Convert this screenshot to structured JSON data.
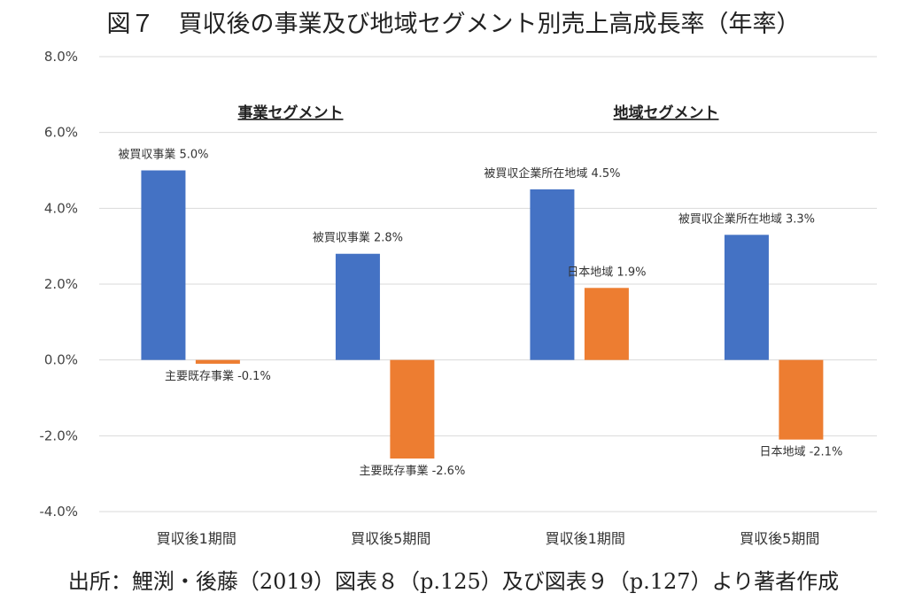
{
  "title": "図７　買収後の事業及び地域セグメント別売上高成長率（年率）",
  "source": "出所：鯉渕・後藤（2019）図表８（p.125）及び図表９（p.127）より著者作成",
  "segment_headers": [
    "事業セグメント",
    "地域セグメント"
  ],
  "colors": {
    "blue": "#4472C4",
    "orange": "#ED7D31"
  },
  "chart_data": {
    "type": "bar",
    "categories": [
      "買収後1期間",
      "買収後5期間",
      "買収後1期間",
      "買収後5期間"
    ],
    "ylim": [
      -4.0,
      8.0
    ],
    "yticks": [
      "8.0%",
      "6.0%",
      "4.0%",
      "2.0%",
      "0.0%",
      "-2.0%",
      "-4.0%"
    ],
    "ytick_values": [
      8,
      6,
      4,
      2,
      0,
      -2,
      -4
    ],
    "grid": true,
    "bars": [
      {
        "category": 0,
        "slot": 0,
        "value": 5.0,
        "label": "被買収事業 5.0%",
        "color": "blue"
      },
      {
        "category": 0,
        "slot": 1,
        "value": -0.1,
        "label": "主要既存事業 -0.1%",
        "color": "orange"
      },
      {
        "category": 1,
        "slot": 0,
        "value": 2.8,
        "label": "被買収事業 2.8%",
        "color": "blue"
      },
      {
        "category": 1,
        "slot": 1,
        "value": -2.6,
        "label": "主要既存事業 -2.6%",
        "color": "orange"
      },
      {
        "category": 2,
        "slot": 0,
        "value": 4.5,
        "label": "被買収企業所在地域 4.5%",
        "color": "blue"
      },
      {
        "category": 2,
        "slot": 1,
        "value": 1.9,
        "label": "日本地域 1.9%",
        "color": "orange"
      },
      {
        "category": 3,
        "slot": 0,
        "value": 3.3,
        "label": "被買収企業所在地域 3.3%",
        "color": "blue"
      },
      {
        "category": 3,
        "slot": 1,
        "value": -2.1,
        "label": "日本地域 -2.1%",
        "color": "orange"
      }
    ]
  }
}
